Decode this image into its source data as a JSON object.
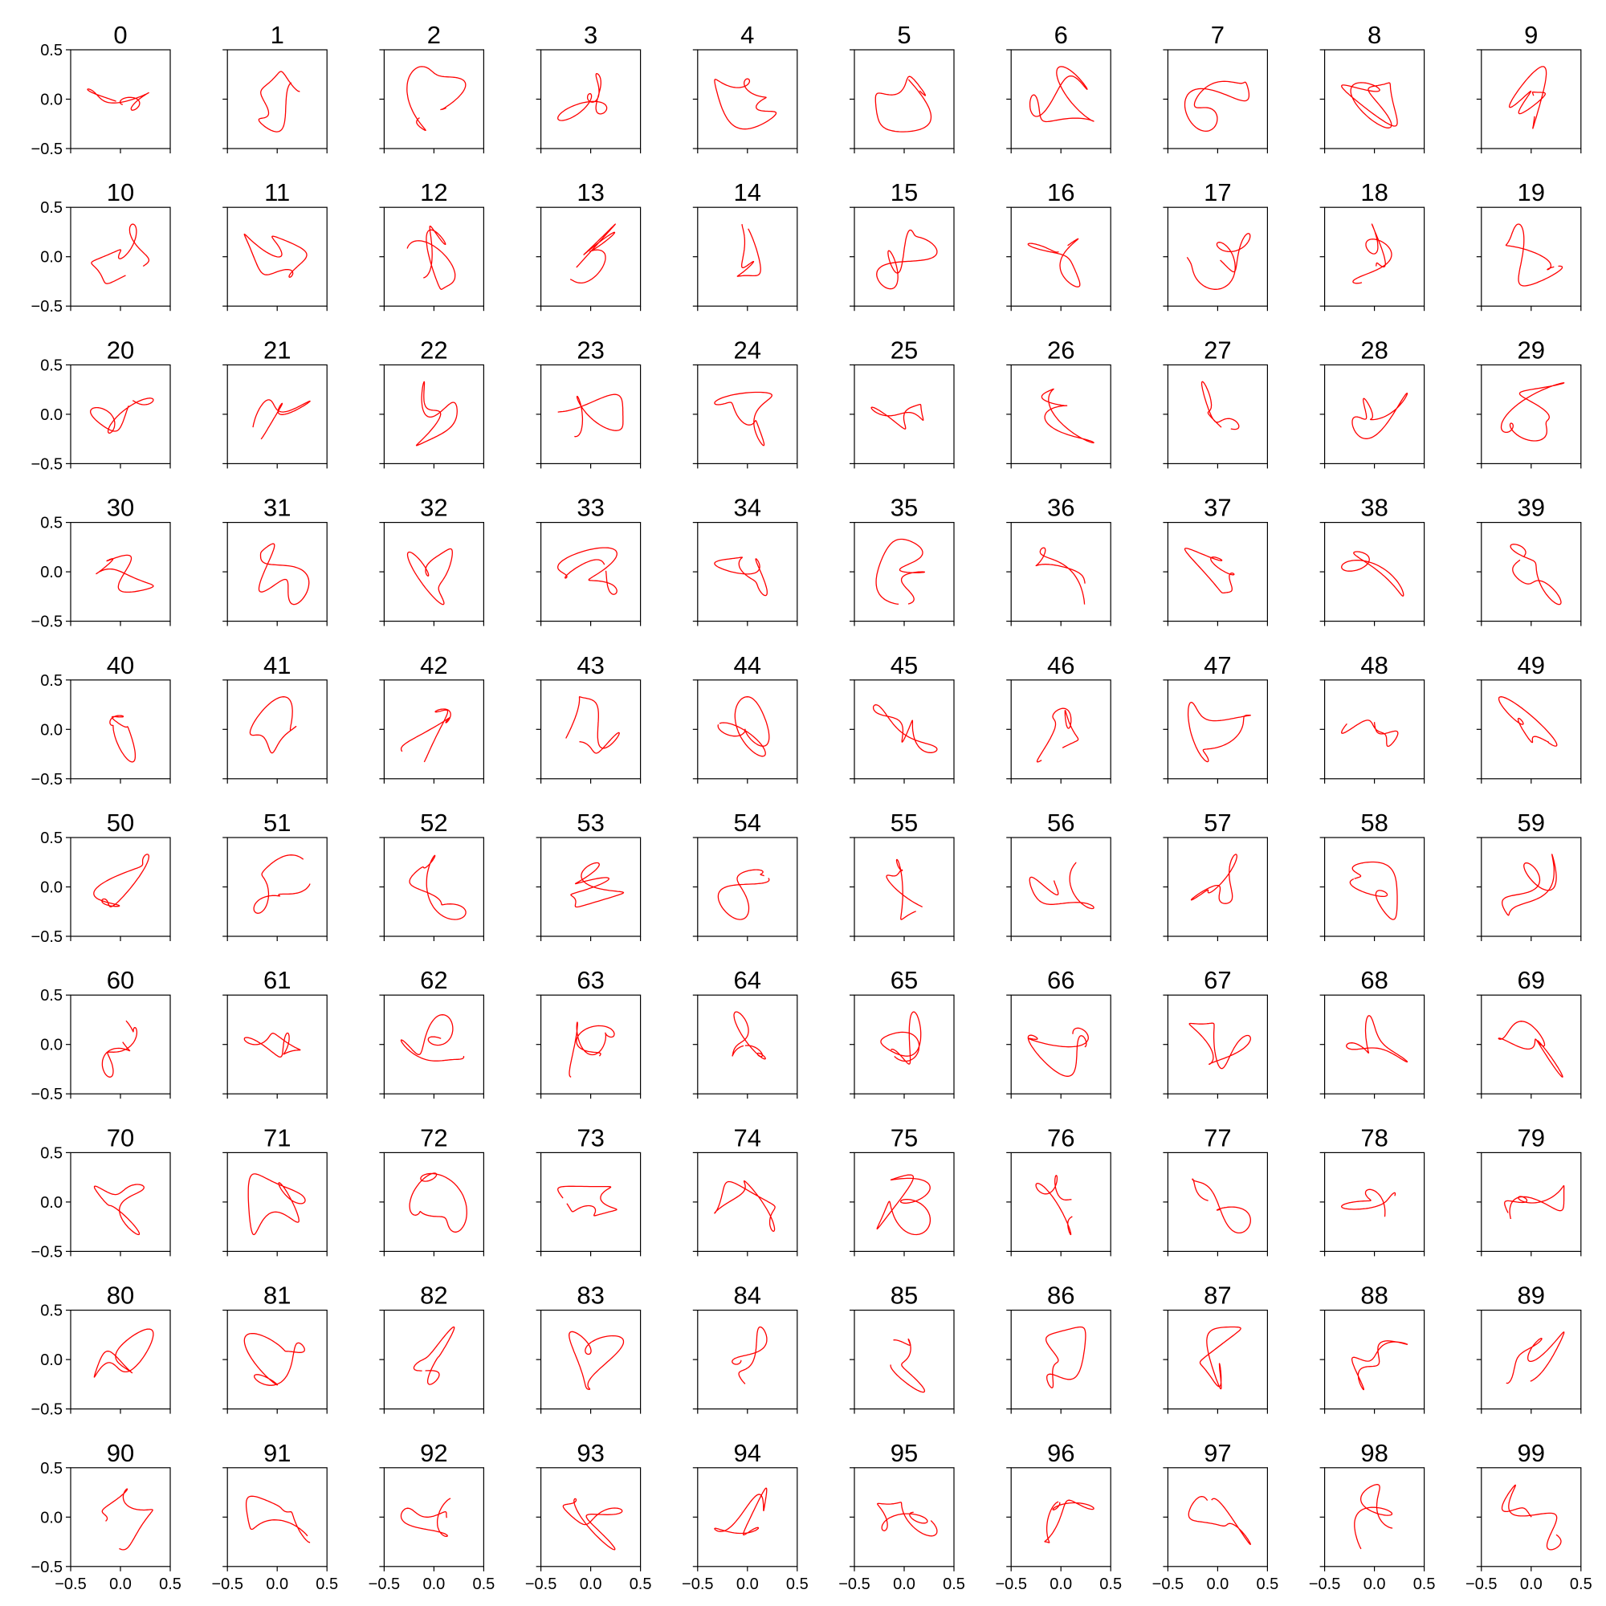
{
  "chart_data": {
    "type": "line",
    "layout": "10x10 grid of subplots, shared axes",
    "panel_titles": [
      "0",
      "1",
      "2",
      "3",
      "4",
      "5",
      "6",
      "7",
      "8",
      "9",
      "10",
      "11",
      "12",
      "13",
      "14",
      "15",
      "16",
      "17",
      "18",
      "19",
      "20",
      "21",
      "22",
      "23",
      "24",
      "25",
      "26",
      "27",
      "28",
      "29",
      "30",
      "31",
      "32",
      "33",
      "34",
      "35",
      "36",
      "37",
      "38",
      "39",
      "40",
      "41",
      "42",
      "43",
      "44",
      "45",
      "46",
      "47",
      "48",
      "49",
      "50",
      "51",
      "52",
      "53",
      "54",
      "55",
      "56",
      "57",
      "58",
      "59",
      "60",
      "61",
      "62",
      "63",
      "64",
      "65",
      "66",
      "67",
      "68",
      "69",
      "70",
      "71",
      "72",
      "73",
      "74",
      "75",
      "76",
      "77",
      "78",
      "79",
      "80",
      "81",
      "82",
      "83",
      "84",
      "85",
      "86",
      "87",
      "88",
      "89",
      "90",
      "91",
      "92",
      "93",
      "94",
      "95",
      "96",
      "97",
      "98",
      "99"
    ],
    "xlim": [
      -0.5,
      0.5
    ],
    "ylim": [
      -0.5,
      0.5
    ],
    "x_ticks": [
      -0.5,
      0.0,
      0.5
    ],
    "y_ticks": [
      -0.5,
      0.0,
      0.5
    ],
    "x_tick_labels": [
      "−0.5",
      "0.0",
      "0.5"
    ],
    "y_tick_labels": [
      "−0.5",
      "0.0",
      "0.5"
    ],
    "x_tick_labels_shown_on": "bottom row only",
    "y_tick_labels_shown_on": "left column only",
    "line_color": "#ff0000",
    "grid": false,
    "series_note": "Each panel shows one random smooth curve (red) inside the range [-0.5, 0.5] on both axes; curves differ per panel.",
    "curve_parameters": {
      "points_per_curve": 160,
      "amplitude": 0.33,
      "harmonics": 4,
      "random_seed": 12345
    }
  }
}
